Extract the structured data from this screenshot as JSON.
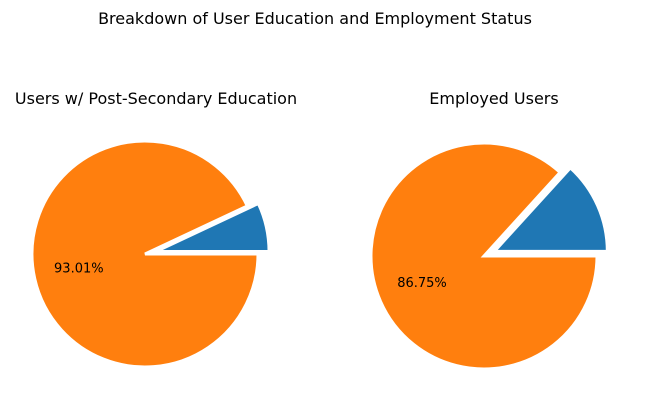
{
  "chart_data": [
    {
      "type": "pie",
      "title": "Users w/ Post-Secondary Education",
      "slices": [
        {
          "value": 6.99,
          "color": "#1f77b4",
          "exploded": true,
          "label": ""
        },
        {
          "value": 93.01,
          "color": "#ff7f0e",
          "exploded": false,
          "label": "93.01%"
        }
      ]
    },
    {
      "type": "pie",
      "title": "Employed Users",
      "slices": [
        {
          "value": 13.25,
          "color": "#1f77b4",
          "exploded": true,
          "label": ""
        },
        {
          "value": 86.75,
          "color": "#ff7f0e",
          "exploded": false,
          "label": "86.75%"
        }
      ]
    }
  ],
  "figure": {
    "suptitle": "Breakdown of User Education and Employment Status"
  }
}
